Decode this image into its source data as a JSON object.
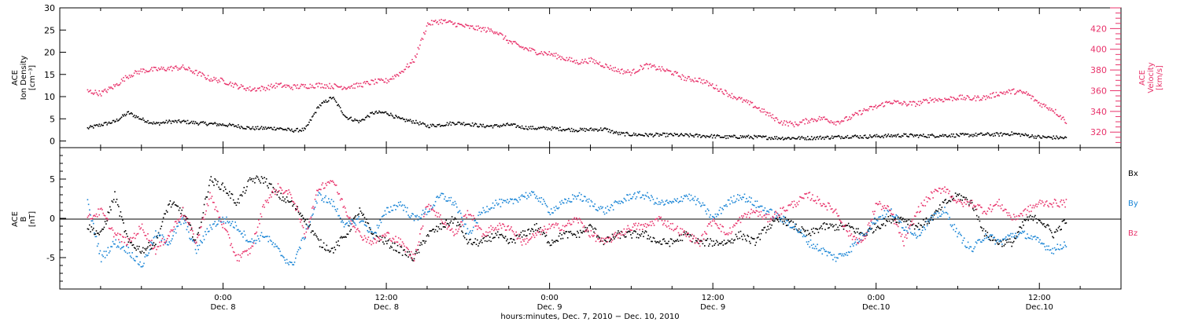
{
  "chart_data": [
    {
      "type": "scatter",
      "ylabel_left": [
        "ACE",
        "Ion Density",
        "[cm⁻³]"
      ],
      "ylabel_right": [
        "ACE",
        "Velocity",
        "[km/s]"
      ],
      "ylim_left": [
        -1.5,
        30
      ],
      "ylim_right": [
        305,
        440
      ],
      "yticks_left": [
        "0",
        "5",
        "10",
        "15",
        "20",
        "25",
        "30"
      ],
      "yticks_right": [
        "320",
        "340",
        "360",
        "380",
        "400",
        "420"
      ],
      "colors": {
        "density": "#000000",
        "velocity": "#e8336b"
      },
      "series": [
        {
          "name": "Ion Density",
          "axis": "left",
          "color": "#000000",
          "x_hours": [
            -10,
            -9,
            -8,
            -7,
            -6,
            -5,
            -4,
            -3,
            -2,
            -1,
            0,
            1,
            2,
            3,
            4,
            5,
            6,
            7,
            8,
            9,
            10,
            11,
            12,
            13,
            14,
            15,
            16,
            17,
            18,
            19,
            20,
            21,
            22,
            23,
            24,
            25,
            26,
            27,
            28,
            29,
            30,
            31,
            32,
            33,
            34,
            35,
            36,
            37,
            38,
            39,
            40,
            41,
            42,
            43,
            44,
            45,
            46,
            47,
            48,
            49,
            50,
            51,
            52,
            53,
            54,
            55,
            56,
            57,
            58,
            59,
            60,
            61,
            62
          ],
          "values": [
            3,
            3.8,
            4.5,
            6.5,
            5,
            4,
            4.5,
            4.5,
            4.2,
            4,
            3.8,
            3.5,
            3,
            3,
            3,
            2.5,
            2.7,
            8,
            10,
            5.5,
            4.5,
            6.5,
            6.5,
            5,
            4.5,
            3.5,
            3.8,
            4.2,
            4,
            3.5,
            3.5,
            3.8,
            3.2,
            3,
            3,
            2.8,
            2.6,
            2.7,
            2.8,
            1.8,
            1.6,
            1.5,
            1.5,
            1.5,
            1.4,
            1.3,
            1.2,
            1,
            1.1,
            1,
            0.9,
            0.8,
            0.8,
            0.8,
            0.9,
            1,
            1.2,
            1.1,
            1.2,
            1.3,
            1.4,
            1.3,
            1.3,
            1.4,
            1.4,
            1.5,
            1.6,
            1.6,
            1.8,
            1.4,
            1,
            0.9,
            0.8
          ]
        },
        {
          "name": "Velocity",
          "axis": "right",
          "color": "#e8336b",
          "x_hours": [
            -10,
            -9,
            -8,
            -7,
            -6,
            -5,
            -4,
            -3,
            -2,
            -1,
            0,
            1,
            2,
            3,
            4,
            5,
            6,
            7,
            8,
            9,
            10,
            11,
            12,
            13,
            14,
            15,
            16,
            17,
            18,
            19,
            20,
            21,
            22,
            23,
            24,
            25,
            26,
            27,
            28,
            29,
            30,
            31,
            32,
            33,
            34,
            35,
            36,
            37,
            38,
            39,
            40,
            41,
            42,
            43,
            44,
            45,
            46,
            47,
            48,
            49,
            50,
            51,
            52,
            53,
            54,
            55,
            56,
            57,
            58,
            59,
            60,
            61,
            62
          ],
          "values": [
            360,
            358,
            365,
            375,
            380,
            381,
            382,
            383,
            378,
            372,
            370,
            365,
            362,
            363,
            366,
            364,
            365,
            366,
            365,
            364,
            366,
            369,
            370,
            378,
            390,
            425,
            428,
            425,
            422,
            420,
            418,
            408,
            402,
            398,
            396,
            392,
            388,
            390,
            385,
            380,
            378,
            385,
            382,
            378,
            372,
            371,
            365,
            358,
            352,
            346,
            338,
            330,
            328,
            332,
            334,
            330,
            334,
            341,
            345,
            350,
            348,
            348,
            352,
            352,
            354,
            353,
            354,
            358,
            360,
            358,
            348,
            342,
            330
          ]
        }
      ]
    },
    {
      "type": "scatter",
      "ylabel_left": [
        "ACE",
        "B",
        "[nT]"
      ],
      "ylim": [
        -9,
        9
      ],
      "yticks": [
        "-5",
        "0",
        "5"
      ],
      "legend_position": "right",
      "legend": [
        "Bx",
        "By",
        "Bz"
      ],
      "colors": {
        "Bx": "#000000",
        "By": "#1a85d6",
        "Bz": "#e8336b"
      },
      "series": [
        {
          "name": "Bx",
          "color": "#000000",
          "x_hours": [
            -10,
            -9,
            -8,
            -7,
            -6,
            -5,
            -4,
            -3,
            -2,
            -1,
            0,
            1,
            2,
            3,
            4,
            5,
            6,
            7,
            8,
            9,
            10,
            11,
            12,
            13,
            14,
            15,
            16,
            17,
            18,
            19,
            20,
            21,
            22,
            23,
            24,
            25,
            26,
            27,
            28,
            29,
            30,
            31,
            32,
            33,
            34,
            35,
            36,
            37,
            38,
            39,
            40,
            41,
            42,
            43,
            44,
            45,
            46,
            47,
            48,
            49,
            50,
            51,
            52,
            53,
            54,
            55,
            56,
            57,
            58,
            59,
            60,
            61,
            62
          ],
          "values": [
            -1,
            -2,
            3,
            -3,
            -4,
            -3,
            2,
            1,
            -3,
            5,
            4,
            2,
            5,
            5,
            3,
            2,
            0,
            -3,
            -4,
            -2,
            1,
            -2,
            -3,
            -4,
            -5,
            -2,
            -1,
            0,
            -3,
            -3,
            -2,
            -3,
            -2,
            -1,
            -3,
            -2,
            -2,
            -1,
            -3,
            -2,
            -2,
            -2,
            -3,
            -3,
            -2,
            -3,
            -3,
            -3,
            -2,
            -3,
            -1,
            0,
            -1,
            -2,
            -1,
            -1,
            -1,
            -2,
            -1,
            0,
            0,
            -1,
            0,
            2,
            3,
            2,
            -2,
            -3,
            -3,
            0,
            0,
            -2,
            0
          ]
        },
        {
          "name": "By",
          "color": "#1a85d6",
          "x_hours": [
            -10,
            -9,
            -8,
            -7,
            -6,
            -5,
            -4,
            -3,
            -2,
            -1,
            0,
            1,
            2,
            3,
            4,
            5,
            6,
            7,
            8,
            9,
            10,
            11,
            12,
            13,
            14,
            15,
            16,
            17,
            18,
            19,
            20,
            21,
            22,
            23,
            24,
            25,
            26,
            27,
            28,
            29,
            30,
            31,
            32,
            33,
            34,
            35,
            36,
            37,
            38,
            39,
            40,
            41,
            42,
            43,
            44,
            45,
            46,
            47,
            48,
            49,
            50,
            51,
            52,
            53,
            54,
            55,
            56,
            57,
            58,
            59,
            60,
            61,
            62
          ],
          "values": [
            2,
            -5,
            -3,
            -4,
            -6,
            -2,
            -3,
            0,
            -4,
            -1,
            0,
            -1,
            -3,
            -2,
            -4,
            -6,
            -2,
            3,
            2,
            -1,
            0,
            -2,
            1,
            2,
            0,
            1,
            3,
            2,
            -2,
            1,
            2,
            2,
            3,
            3,
            1,
            2,
            3,
            2,
            1,
            2,
            3,
            3,
            2,
            2,
            3,
            2,
            0,
            2,
            3,
            2,
            1,
            0,
            -1,
            -3,
            -4,
            -5,
            -4,
            -2,
            0,
            1,
            -1,
            -2,
            0,
            1,
            -2,
            -4,
            -2,
            -3,
            -2,
            -2,
            -3,
            -4,
            -3
          ]
        },
        {
          "name": "Bz",
          "color": "#e8336b",
          "x_hours": [
            -10,
            -9,
            -8,
            -7,
            -6,
            -5,
            -4,
            -3,
            -2,
            -1,
            0,
            1,
            2,
            3,
            4,
            5,
            6,
            7,
            8,
            9,
            10,
            11,
            12,
            13,
            14,
            15,
            16,
            17,
            18,
            19,
            20,
            21,
            22,
            23,
            24,
            25,
            26,
            27,
            28,
            29,
            30,
            31,
            32,
            33,
            34,
            35,
            36,
            37,
            38,
            39,
            40,
            41,
            42,
            43,
            44,
            45,
            46,
            47,
            48,
            49,
            50,
            51,
            52,
            53,
            54,
            55,
            56,
            57,
            58,
            59,
            60,
            61,
            62
          ],
          "values": [
            0,
            1,
            -2,
            -3,
            -1,
            -4,
            -2,
            1,
            -3,
            3,
            -1,
            -5,
            -4,
            2,
            4,
            3,
            -2,
            4,
            5,
            1,
            -2,
            -3,
            -2,
            -3,
            -5,
            2,
            0,
            -2,
            1,
            -2,
            -1,
            -1,
            -3,
            -2,
            -1,
            -1,
            0,
            -2,
            -3,
            -2,
            -1,
            -1,
            0,
            -1,
            -2,
            -3,
            0,
            -2,
            0,
            1,
            0,
            1,
            2,
            3,
            2,
            1,
            -2,
            -3,
            2,
            1,
            -3,
            1,
            3,
            4,
            2,
            2,
            1,
            2,
            0,
            1,
            2,
            2,
            2
          ]
        }
      ]
    }
  ],
  "x_axis": {
    "xlim_hours": [
      -12,
      66
    ],
    "ticks": [
      {
        "hour": 0,
        "time": "0:00",
        "day": "Dec. 8"
      },
      {
        "hour": 12,
        "time": "12:00",
        "day": "Dec. 8"
      },
      {
        "hour": 24,
        "time": "0:00",
        "day": "Dec. 9"
      },
      {
        "hour": 36,
        "time": "12:00",
        "day": "Dec. 9"
      },
      {
        "hour": 48,
        "time": "0:00",
        "day": "Dec.10"
      },
      {
        "hour": 60,
        "time": "12:00",
        "day": "Dec.10"
      }
    ],
    "xlabel": "hours:minutes, Dec.  7, 2010 − Dec. 10, 2010"
  }
}
